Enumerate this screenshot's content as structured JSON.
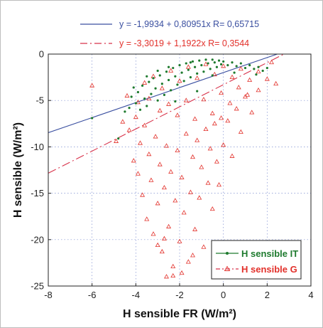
{
  "chart_data": {
    "type": "scatter",
    "xlabel": "H sensible FR (W/m²)",
    "ylabel": "H sensible (W/m²)",
    "xlim": [
      -8,
      4
    ],
    "ylim": [
      -25,
      0
    ],
    "x_ticks": [
      -8,
      -6,
      -4,
      -2,
      0,
      2,
      4
    ],
    "y_ticks": [
      0,
      -5,
      -10,
      -15,
      -20,
      -25
    ],
    "x_tick_labels": [
      "-8",
      "-6",
      "-4",
      "-2",
      "0",
      "2",
      "4"
    ],
    "y_tick_labels": [
      "0",
      "-5",
      "-10",
      "-15",
      "-20",
      "-25"
    ],
    "grid": true,
    "legend_position": "bottom-right",
    "colors": {
      "it": "#1e7a2e",
      "g": "#e2302a",
      "fit_it": "#3a4fa0",
      "fit_g": "#d8324a"
    },
    "series": [
      {
        "name": "H sensible IT",
        "marker": "dot",
        "points": [
          [
            -6.0,
            -6.9
          ],
          [
            -4.8,
            -9.1
          ],
          [
            -4.5,
            -6.2
          ],
          [
            -4.3,
            -5.8
          ],
          [
            -4.2,
            -4.6
          ],
          [
            -4.0,
            -5.3
          ],
          [
            -3.9,
            -4.1
          ],
          [
            -3.8,
            -6.0
          ],
          [
            -3.7,
            -3.4
          ],
          [
            -3.6,
            -4.8
          ],
          [
            -3.5,
            -5.6
          ],
          [
            -3.4,
            -3.0
          ],
          [
            -3.3,
            -4.3
          ],
          [
            -3.2,
            -2.6
          ],
          [
            -3.1,
            -3.7
          ],
          [
            -3.0,
            -5.0
          ],
          [
            -2.9,
            -2.3
          ],
          [
            -2.8,
            -3.2
          ],
          [
            -2.7,
            -4.4
          ],
          [
            -2.6,
            -1.9
          ],
          [
            -2.5,
            -2.8
          ],
          [
            -2.4,
            -3.9
          ],
          [
            -2.3,
            -1.5
          ],
          [
            -2.2,
            -2.4
          ],
          [
            -2.1,
            -3.3
          ],
          [
            -2.0,
            -1.2
          ],
          [
            -1.9,
            -2.0
          ],
          [
            -1.8,
            -2.9
          ],
          [
            -1.7,
            -1.0
          ],
          [
            -1.6,
            -1.7
          ],
          [
            -1.5,
            -2.5
          ],
          [
            -1.4,
            -0.8
          ],
          [
            -1.3,
            -1.4
          ],
          [
            -1.2,
            -2.1
          ],
          [
            -1.1,
            -0.7
          ],
          [
            -1.0,
            -1.2
          ],
          [
            -0.9,
            -1.9
          ],
          [
            -0.8,
            -0.6
          ],
          [
            -0.7,
            -1.0
          ],
          [
            -0.6,
            -1.6
          ],
          [
            -0.5,
            -0.6
          ],
          [
            -0.4,
            -0.9
          ],
          [
            -0.3,
            -1.4
          ],
          [
            -0.2,
            -0.7
          ],
          [
            -0.1,
            -1.1
          ],
          [
            0.0,
            -0.8
          ],
          [
            0.2,
            -1.2
          ],
          [
            0.4,
            -0.9
          ],
          [
            0.6,
            -1.3
          ],
          [
            0.8,
            -1.0
          ],
          [
            1.0,
            -1.5
          ],
          [
            1.2,
            -1.2
          ],
          [
            1.4,
            -1.6
          ],
          [
            1.6,
            -1.4
          ],
          [
            1.8,
            -1.8
          ],
          [
            2.0,
            -1.5
          ],
          [
            -3.0,
            -1.8
          ],
          [
            -2.5,
            -1.4
          ],
          [
            -1.5,
            -0.9
          ],
          [
            -0.5,
            -2.3
          ],
          [
            0.5,
            -2.0
          ],
          [
            1.5,
            -2.2
          ],
          [
            -3.5,
            -2.4
          ],
          [
            -4.1,
            -3.6
          ],
          [
            -2.2,
            -5.1
          ],
          [
            -1.2,
            -4.0
          ]
        ]
      },
      {
        "name": "H  sensible G",
        "marker": "triangle",
        "points": [
          [
            -6.0,
            -3.4
          ],
          [
            -4.9,
            -9.4
          ],
          [
            -4.6,
            -7.3
          ],
          [
            -4.3,
            -8.2
          ],
          [
            -4.1,
            -11.5
          ],
          [
            -4.0,
            -6.8
          ],
          [
            -3.9,
            -12.9
          ],
          [
            -3.8,
            -9.6
          ],
          [
            -3.7,
            -15.2
          ],
          [
            -3.6,
            -7.7
          ],
          [
            -3.5,
            -17.8
          ],
          [
            -3.4,
            -10.8
          ],
          [
            -3.3,
            -13.6
          ],
          [
            -3.2,
            -19.4
          ],
          [
            -3.1,
            -8.9
          ],
          [
            -3.0,
            -16.1
          ],
          [
            -2.9,
            -11.9
          ],
          [
            -2.8,
            -21.3
          ],
          [
            -2.7,
            -14.4
          ],
          [
            -2.6,
            -9.9
          ],
          [
            -2.5,
            -18.6
          ],
          [
            -2.4,
            -12.7
          ],
          [
            -2.3,
            -23.9
          ],
          [
            -2.2,
            -15.8
          ],
          [
            -2.1,
            -10.4
          ],
          [
            -2.0,
            -20.2
          ],
          [
            -1.9,
            -13.3
          ],
          [
            -1.8,
            -17.1
          ],
          [
            -1.7,
            -8.6
          ],
          [
            -1.6,
            -22.4
          ],
          [
            -1.5,
            -14.9
          ],
          [
            -1.4,
            -11.1
          ],
          [
            -1.3,
            -18.9
          ],
          [
            -1.2,
            -9.3
          ],
          [
            -1.1,
            -15.5
          ],
          [
            -1.0,
            -12.2
          ],
          [
            -0.9,
            -20.8
          ],
          [
            -0.8,
            -8.1
          ],
          [
            -0.7,
            -13.9
          ],
          [
            -0.6,
            -10.2
          ],
          [
            -0.5,
            -16.7
          ],
          [
            -0.4,
            -7.5
          ],
          [
            -0.3,
            -11.6
          ],
          [
            -0.2,
            -14.1
          ],
          [
            -0.1,
            -6.9
          ],
          [
            0.0,
            -9.8
          ],
          [
            0.2,
            -7.2
          ],
          [
            0.4,
            -11.0
          ],
          [
            0.6,
            -5.9
          ],
          [
            0.8,
            -8.4
          ],
          [
            1.0,
            -4.6
          ],
          [
            1.3,
            -6.3
          ],
          [
            1.6,
            -3.9
          ],
          [
            2.0,
            -2.7
          ],
          [
            -3.6,
            -3.1
          ],
          [
            -3.2,
            -2.4
          ],
          [
            -2.8,
            -3.7
          ],
          [
            -2.4,
            -1.8
          ],
          [
            -2.0,
            -2.9
          ],
          [
            -1.6,
            -1.4
          ],
          [
            -1.2,
            -2.6
          ],
          [
            -0.8,
            -1.1
          ],
          [
            -0.4,
            -2.2
          ],
          [
            0.0,
            -1.3
          ],
          [
            0.4,
            -2.5
          ],
          [
            0.8,
            -1.6
          ],
          [
            1.2,
            -2.8
          ],
          [
            1.6,
            -1.9
          ],
          [
            2.2,
            -0.9
          ],
          [
            2.4,
            -3.2
          ],
          [
            -4.4,
            -4.5
          ],
          [
            -3.9,
            -5.2
          ],
          [
            -3.4,
            -4.8
          ],
          [
            -2.9,
            -6.1
          ],
          [
            -2.5,
            -5.4
          ],
          [
            -2.1,
            -6.6
          ],
          [
            -1.7,
            -5.0
          ],
          [
            -1.3,
            -7.0
          ],
          [
            -0.9,
            -4.9
          ],
          [
            -0.5,
            -6.4
          ],
          [
            -0.1,
            -4.2
          ],
          [
            0.3,
            -5.3
          ],
          [
            0.7,
            -3.6
          ],
          [
            1.1,
            -4.4
          ],
          [
            -2.6,
            -24.0
          ],
          [
            -2.3,
            -22.9
          ],
          [
            -1.9,
            -23.6
          ],
          [
            -3.0,
            -20.6
          ],
          [
            -1.4,
            -21.7
          ],
          [
            -2.7,
            -19.9
          ]
        ]
      }
    ],
    "fits": [
      {
        "label": "y = -1,9934 + 0,80951x   R= 0,65715",
        "intercept": -1.9934,
        "slope": 0.80951,
        "style": "solid"
      },
      {
        "label": "y = -3,3019 + 1,1922x   R= 0,3544",
        "intercept": -3.3019,
        "slope": 1.1922,
        "style": "dashed"
      }
    ]
  }
}
